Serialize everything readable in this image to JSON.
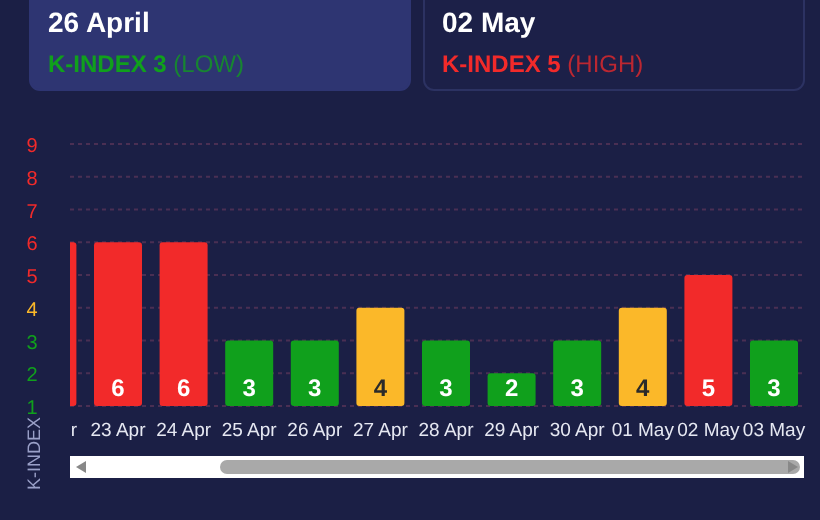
{
  "chart_data": {
    "type": "bar",
    "ylabel": "K-INDEX",
    "annotations": [
      "26 April",
      "K-INDEX 3 (LOW)",
      "02 May",
      "K-INDEX 5 (HIGH)"
    ],
    "categories": [
      "r",
      "23 Apr",
      "24 Apr",
      "25 Apr",
      "26 Apr",
      "27 Apr",
      "28 Apr",
      "29 Apr",
      "30 Apr",
      "01 May",
      "02 May",
      "03 May"
    ],
    "values": [
      6,
      6,
      6,
      3,
      3,
      4,
      3,
      2,
      3,
      4,
      5,
      3
    ],
    "value_labels": [
      null,
      "6",
      "6",
      "3",
      "3",
      "4",
      "3",
      "2",
      "3",
      "4",
      "5",
      "3"
    ],
    "colors": [
      "#f22a2a",
      "#f22a2a",
      "#f22a2a",
      "#10a01c",
      "#10a01c",
      "#fbb829",
      "#10a01c",
      "#10a01c",
      "#10a01c",
      "#fbb829",
      "#f22a2a",
      "#10a01c"
    ],
    "ylim": [
      1,
      9
    ],
    "yticks": [
      1,
      2,
      3,
      4,
      5,
      6,
      7,
      8,
      9
    ],
    "grid": "y"
  }
}
